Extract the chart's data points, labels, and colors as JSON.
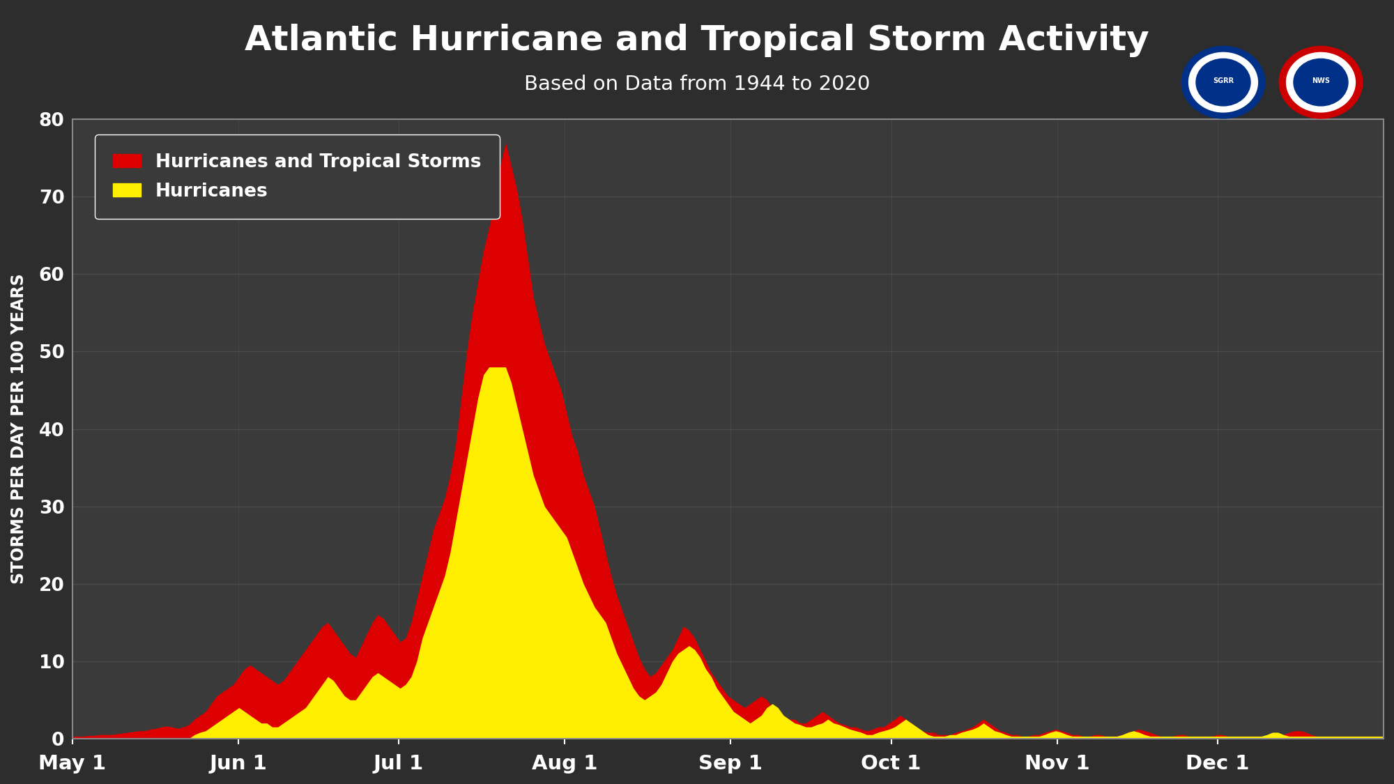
{
  "title": "Atlantic Hurricane and Tropical Storm Activity",
  "subtitle": "Based on Data from 1944 to 2020",
  "ylabel": "STORMS PER DAY PER 100 YEARS",
  "background_color": "#2d2d2d",
  "plot_background_color": "#3a3a3a",
  "grid_color": "#555555",
  "text_color": "#ffffff",
  "red_color": "#dd0000",
  "yellow_color": "#ffee00",
  "ylim": [
    0,
    80
  ],
  "yticks": [
    0,
    10,
    20,
    30,
    40,
    50,
    60,
    70,
    80
  ],
  "xtick_labels": [
    "May 1",
    "Jun 1",
    "Jul 1",
    "Aug 1",
    "Sep 1",
    "Oct 1",
    "Nov 1",
    "Dec 1"
  ],
  "tick_days": [
    0,
    31,
    61,
    92,
    123,
    153,
    184,
    214
  ],
  "total_days": 245,
  "legend_label_red": "Hurricanes and Tropical Storms",
  "legend_label_yellow": "Hurricanes",
  "total_storms": [
    0.3,
    0.3,
    0.3,
    0.4,
    0.4,
    0.5,
    0.5,
    0.5,
    0.6,
    0.7,
    0.8,
    0.9,
    1.0,
    1.0,
    1.2,
    1.3,
    1.5,
    1.6,
    1.5,
    1.3,
    1.5,
    1.8,
    2.5,
    3.0,
    3.5,
    4.5,
    5.5,
    6.0,
    6.5,
    7.0,
    8.0,
    9.0,
    9.5,
    9.0,
    8.5,
    8.0,
    7.5,
    7.0,
    7.5,
    8.5,
    9.5,
    10.5,
    11.5,
    12.5,
    13.5,
    14.5,
    15.0,
    14.0,
    13.0,
    12.0,
    11.0,
    10.5,
    12.0,
    13.5,
    15.0,
    16.0,
    15.5,
    14.5,
    13.5,
    12.5,
    13.0,
    15.0,
    18.0,
    21.0,
    24.0,
    27.0,
    29.0,
    31.0,
    34.0,
    38.0,
    44.0,
    50.0,
    55.0,
    59.0,
    63.0,
    66.0,
    69.0,
    74.0,
    77.0,
    74.0,
    71.0,
    67.0,
    62.0,
    57.0,
    54.0,
    51.0,
    49.0,
    47.0,
    45.0,
    42.0,
    39.0,
    37.0,
    34.0,
    32.0,
    30.0,
    27.0,
    24.0,
    21.0,
    18.5,
    16.5,
    14.5,
    12.5,
    10.5,
    9.0,
    8.0,
    8.5,
    9.5,
    10.5,
    11.5,
    13.0,
    14.5,
    14.0,
    13.0,
    11.5,
    10.0,
    8.5,
    7.5,
    6.5,
    5.5,
    5.0,
    4.5,
    4.0,
    4.5,
    5.0,
    5.5,
    5.0,
    4.0,
    3.5,
    3.0,
    2.5,
    2.5,
    2.0,
    2.0,
    2.5,
    3.0,
    3.5,
    3.0,
    2.5,
    2.0,
    1.8,
    1.5,
    1.5,
    1.2,
    1.0,
    1.2,
    1.5,
    1.5,
    2.0,
    2.5,
    3.0,
    2.5,
    2.0,
    1.5,
    1.0,
    0.8,
    0.8,
    0.5,
    0.5,
    0.5,
    0.8,
    1.0,
    1.2,
    1.5,
    2.0,
    2.5,
    2.0,
    1.5,
    1.0,
    0.8,
    0.5,
    0.5,
    0.3,
    0.3,
    0.5,
    0.5,
    0.8,
    1.0,
    1.2,
    1.0,
    0.8,
    0.5,
    0.5,
    0.3,
    0.3,
    0.5,
    0.5,
    0.3,
    0.3,
    0.3,
    0.5,
    0.8,
    1.0,
    1.2,
    1.0,
    0.8,
    0.5,
    0.3,
    0.3,
    0.3,
    0.5,
    0.5,
    0.3,
    0.3,
    0.3,
    0.3,
    0.3,
    0.5,
    0.5,
    0.3,
    0.3,
    0.3,
    0.3,
    0.3,
    0.3,
    0.3,
    0.3,
    0.3,
    0.5,
    0.5,
    0.8,
    1.0,
    1.0,
    0.8,
    0.5,
    0.3,
    0.3,
    0.3,
    0.3,
    0.3,
    0.3,
    0.3,
    0.3,
    0.3,
    0.3,
    0.3,
    0.3,
    0.3,
    0.5
  ],
  "hurricane_only": [
    0.0,
    0.0,
    0.0,
    0.0,
    0.0,
    0.0,
    0.0,
    0.0,
    0.0,
    0.0,
    0.0,
    0.0,
    0.0,
    0.0,
    0.0,
    0.0,
    0.0,
    0.0,
    0.0,
    0.0,
    0.0,
    0.0,
    0.5,
    0.8,
    1.0,
    1.5,
    2.0,
    2.5,
    3.0,
    3.5,
    4.0,
    3.5,
    3.0,
    2.5,
    2.0,
    2.0,
    1.5,
    1.5,
    2.0,
    2.5,
    3.0,
    3.5,
    4.0,
    5.0,
    6.0,
    7.0,
    8.0,
    7.5,
    6.5,
    5.5,
    5.0,
    5.0,
    6.0,
    7.0,
    8.0,
    8.5,
    8.0,
    7.5,
    7.0,
    6.5,
    7.0,
    8.0,
    10.0,
    13.0,
    15.0,
    17.0,
    19.0,
    21.0,
    24.0,
    28.0,
    32.0,
    36.0,
    40.0,
    44.0,
    47.0,
    48.0,
    48.0,
    48.0,
    48.0,
    46.0,
    43.0,
    40.0,
    37.0,
    34.0,
    32.0,
    30.0,
    29.0,
    28.0,
    27.0,
    26.0,
    24.0,
    22.0,
    20.0,
    18.5,
    17.0,
    16.0,
    15.0,
    13.0,
    11.0,
    9.5,
    8.0,
    6.5,
    5.5,
    5.0,
    5.5,
    6.0,
    7.0,
    8.5,
    10.0,
    11.0,
    11.5,
    12.0,
    11.5,
    10.5,
    9.0,
    8.0,
    6.5,
    5.5,
    4.5,
    3.5,
    3.0,
    2.5,
    2.0,
    2.5,
    3.0,
    4.0,
    4.5,
    4.0,
    3.0,
    2.5,
    2.0,
    1.8,
    1.5,
    1.5,
    1.8,
    2.0,
    2.5,
    2.0,
    1.8,
    1.5,
    1.2,
    1.0,
    0.8,
    0.5,
    0.5,
    0.8,
    1.0,
    1.2,
    1.5,
    2.0,
    2.5,
    2.0,
    1.5,
    1.0,
    0.5,
    0.3,
    0.3,
    0.3,
    0.5,
    0.5,
    0.8,
    1.0,
    1.2,
    1.5,
    2.0,
    1.5,
    1.0,
    0.8,
    0.5,
    0.3,
    0.3,
    0.3,
    0.3,
    0.3,
    0.3,
    0.5,
    0.8,
    1.0,
    0.8,
    0.5,
    0.3,
    0.3,
    0.3,
    0.3,
    0.3,
    0.3,
    0.3,
    0.3,
    0.3,
    0.5,
    0.8,
    1.0,
    0.8,
    0.5,
    0.3,
    0.3,
    0.3,
    0.3,
    0.3,
    0.3,
    0.3,
    0.3,
    0.3,
    0.3,
    0.3,
    0.3,
    0.3,
    0.3,
    0.3,
    0.3,
    0.3,
    0.3,
    0.3,
    0.3,
    0.3,
    0.5,
    0.8,
    0.8,
    0.5,
    0.3,
    0.3,
    0.3,
    0.3,
    0.3,
    0.3,
    0.3,
    0.3,
    0.3,
    0.3,
    0.3,
    0.3,
    0.3,
    0.3,
    0.3,
    0.3,
    0.3,
    0.3
  ]
}
